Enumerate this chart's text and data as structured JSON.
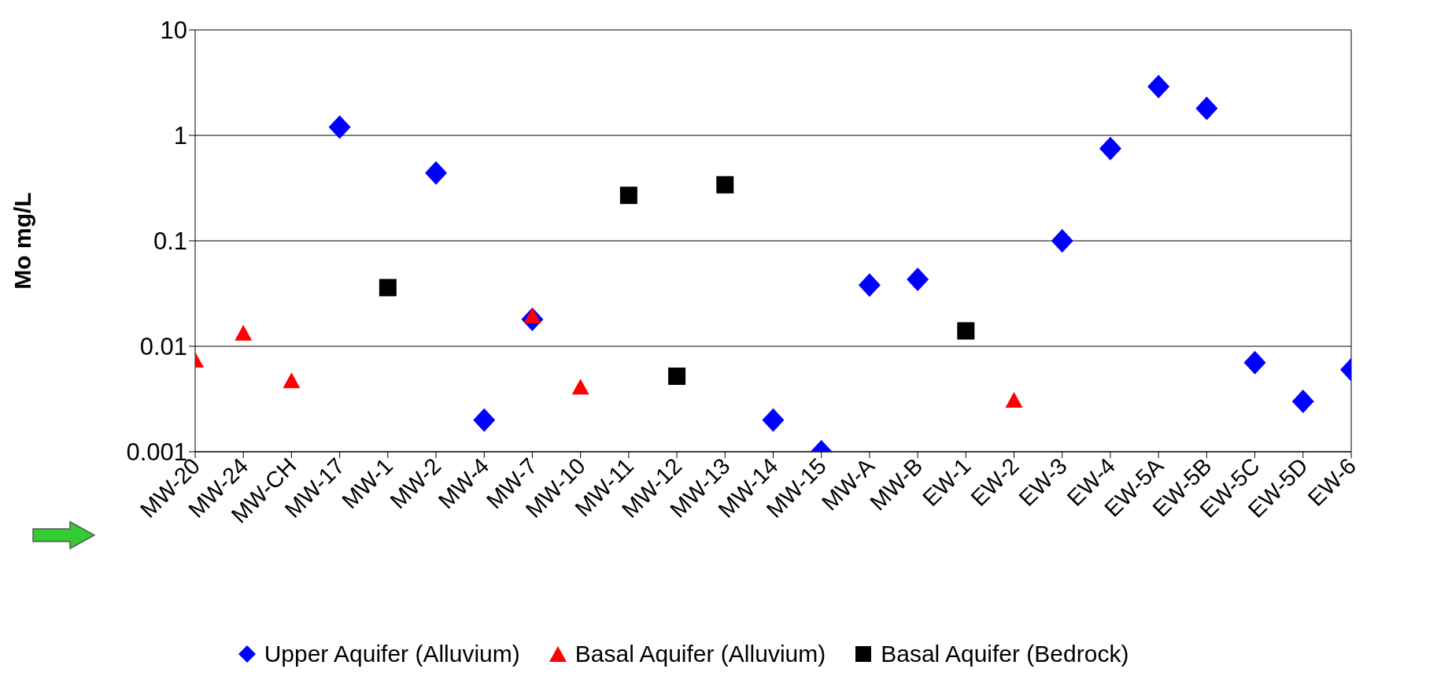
{
  "chart_data": {
    "type": "scatter",
    "ylabel": "Mo mg/L",
    "categories": [
      "MW-20",
      "MW-24",
      "MW-CH",
      "MW-17",
      "MW-1",
      "MW-2",
      "MW-4",
      "MW-7",
      "MW-10",
      "MW-11",
      "MW-12",
      "MW-13",
      "MW-14",
      "MW-15",
      "MW-A",
      "MW-B",
      "EW-1",
      "EW-2",
      "EW-3",
      "EW-4",
      "EW-5A",
      "EW-5B",
      "EW-5C",
      "EW-5D",
      "EW-6"
    ],
    "series": [
      {
        "name": "Upper Aquifer (Alluvium)",
        "color": "#0000ff",
        "marker": "diamond",
        "values": [
          null,
          null,
          null,
          1.2,
          null,
          0.44,
          0.002,
          0.018,
          null,
          null,
          null,
          null,
          0.002,
          0.001,
          0.038,
          0.043,
          null,
          null,
          0.1,
          0.75,
          2.9,
          1.8,
          0.007,
          0.003,
          0.006
        ]
      },
      {
        "name": "Basal Aquifer (Alluvium)",
        "color": "#ff0000",
        "marker": "triangle",
        "values": [
          0.0072,
          0.013,
          0.0046,
          null,
          null,
          null,
          null,
          0.019,
          0.004,
          null,
          null,
          null,
          null,
          null,
          null,
          null,
          null,
          0.003,
          null,
          null,
          null,
          null,
          null,
          null,
          null
        ]
      },
      {
        "name": "Basal Aquifer (Bedrock)",
        "color": "#000000",
        "marker": "square",
        "values": [
          null,
          null,
          null,
          null,
          0.036,
          null,
          null,
          null,
          null,
          0.27,
          0.0052,
          0.34,
          null,
          null,
          null,
          null,
          0.014,
          null,
          null,
          null,
          null,
          null,
          null,
          null,
          null
        ]
      }
    ],
    "log": true,
    "ylim": [
      0.001,
      10
    ],
    "yticks": [
      0.001,
      0.01,
      0.1,
      1,
      10
    ],
    "grid": "y",
    "legend": "bottom"
  }
}
